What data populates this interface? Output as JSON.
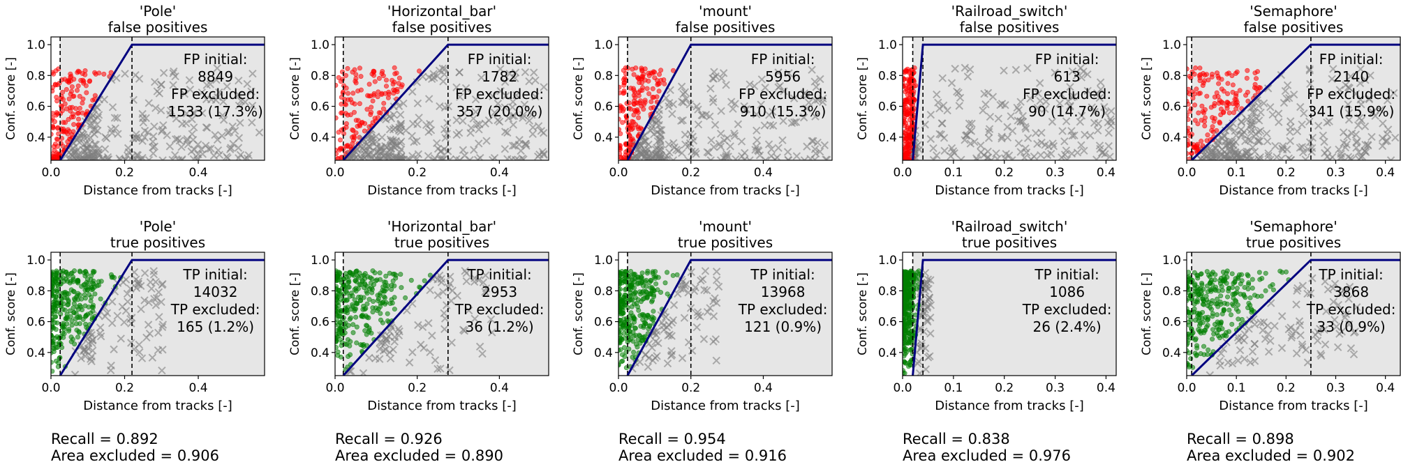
{
  "figure": {
    "x_axis_label": "Distance from tracks [-]",
    "y_axis_label": "Conf. score [-]",
    "colors": {
      "fp_kept": "#ff0000",
      "tp_kept": "#007f00",
      "excluded": "#7f7f7f",
      "shade": "#e6e6e6",
      "threshold_line": "#00007f"
    }
  },
  "chart_data": [
    {
      "type": "scatter",
      "class_name": "'Pole'",
      "xlim": [
        0,
        0.58
      ],
      "ylim": [
        0.25,
        1.05
      ],
      "xticks": [
        "0.0",
        "0.2",
        "0.4"
      ],
      "xtick_values": [
        0,
        0.2,
        0.4
      ],
      "yticks": [
        "0.4",
        "0.6",
        "0.8",
        "1.0"
      ],
      "ytick_values": [
        0.4,
        0.6,
        0.8,
        1.0
      ],
      "dashed_x": [
        0.025,
        0.22
      ],
      "threshold_curve": [
        [
          0.025,
          0.25
        ],
        [
          0.22,
          1.0
        ],
        [
          0.58,
          1.0
        ]
      ],
      "fp": {
        "title": "false positives",
        "lines": [
          "FP initial:",
          "8849",
          "FP excluded:",
          "1533 (17.3%)"
        ]
      },
      "tp": {
        "title": "true positives",
        "lines": [
          "TP initial:",
          "14032",
          "TP excluded:",
          "165 (1.2%)"
        ]
      },
      "recall": "Recall = 0.892",
      "area_excluded": "Area excluded = 0.906"
    },
    {
      "type": "scatter",
      "class_name": "'Horizontal_bar'",
      "xlim": [
        0,
        0.52
      ],
      "ylim": [
        0.25,
        1.05
      ],
      "xticks": [
        "0.0",
        "0.2",
        "0.4"
      ],
      "xtick_values": [
        0,
        0.2,
        0.4
      ],
      "yticks": [
        "0.4",
        "0.6",
        "0.8",
        "1.0"
      ],
      "ytick_values": [
        0.4,
        0.6,
        0.8,
        1.0
      ],
      "dashed_x": [
        0.02,
        0.275
      ],
      "threshold_curve": [
        [
          0.02,
          0.25
        ],
        [
          0.275,
          1.0
        ],
        [
          0.52,
          1.0
        ]
      ],
      "fp": {
        "title": "false positives",
        "lines": [
          "FP initial:",
          "1782",
          "FP excluded:",
          "357 (20.0%)"
        ]
      },
      "tp": {
        "title": "true positives",
        "lines": [
          "TP initial:",
          "2953",
          "TP excluded:",
          "36 (1.2%)"
        ]
      },
      "recall": "Recall = 0.926",
      "area_excluded": "Area excluded = 0.890"
    },
    {
      "type": "scatter",
      "class_name": "'mount'",
      "xlim": [
        0,
        0.59
      ],
      "ylim": [
        0.25,
        1.05
      ],
      "xticks": [
        "0.0",
        "0.2",
        "0.4"
      ],
      "xtick_values": [
        0,
        0.2,
        0.4
      ],
      "yticks": [
        "0.4",
        "0.6",
        "0.8",
        "1.0"
      ],
      "ytick_values": [
        0.4,
        0.6,
        0.8,
        1.0
      ],
      "dashed_x": [
        0.025,
        0.2
      ],
      "threshold_curve": [
        [
          0.025,
          0.25
        ],
        [
          0.2,
          1.0
        ],
        [
          0.59,
          1.0
        ]
      ],
      "fp": {
        "title": "false positives",
        "lines": [
          "FP initial:",
          "5956",
          "FP excluded:",
          "910 (15.3%)"
        ]
      },
      "tp": {
        "title": "true positives",
        "lines": [
          "TP initial:",
          "13968",
          "TP excluded:",
          "121 (0.9%)"
        ]
      },
      "recall": "Recall = 0.954",
      "area_excluded": "Area excluded = 0.916"
    },
    {
      "type": "scatter",
      "class_name": "'Railroad_switch'",
      "xlim": [
        0,
        0.42
      ],
      "ylim": [
        0.25,
        1.05
      ],
      "xticks": [
        "0.0",
        "0.1",
        "0.2",
        "0.3",
        "0.4"
      ],
      "xtick_values": [
        0,
        0.1,
        0.2,
        0.3,
        0.4
      ],
      "yticks": [
        "0.4",
        "0.6",
        "0.8",
        "1.0"
      ],
      "ytick_values": [
        0.4,
        0.6,
        0.8,
        1.0
      ],
      "dashed_x": [
        0.02,
        0.04
      ],
      "threshold_curve": [
        [
          0.02,
          0.25
        ],
        [
          0.04,
          1.0
        ],
        [
          0.42,
          1.0
        ]
      ],
      "fp": {
        "title": "false positives",
        "lines": [
          "FP initial:",
          "613",
          "FP excluded:",
          "90 (14.7%)"
        ]
      },
      "tp": {
        "title": "true positives",
        "lines": [
          "TP initial:",
          "1086",
          "TP excluded:",
          "26 (2.4%)"
        ]
      },
      "recall": "Recall = 0.838",
      "area_excluded": "Area excluded = 0.976"
    },
    {
      "type": "scatter",
      "class_name": "'Semaphore'",
      "xlim": [
        0,
        0.43
      ],
      "ylim": [
        0.25,
        1.05
      ],
      "xticks": [
        "0.0",
        "0.1",
        "0.2",
        "0.3",
        "0.4"
      ],
      "xtick_values": [
        0,
        0.1,
        0.2,
        0.3,
        0.4
      ],
      "yticks": [
        "0.4",
        "0.6",
        "0.8",
        "1.0"
      ],
      "ytick_values": [
        0.4,
        0.6,
        0.8,
        1.0
      ],
      "dashed_x": [
        0.01,
        0.25
      ],
      "threshold_curve": [
        [
          0.01,
          0.25
        ],
        [
          0.25,
          1.0
        ],
        [
          0.43,
          1.0
        ]
      ],
      "fp": {
        "title": "false positives",
        "lines": [
          "FP initial:",
          "2140",
          "FP excluded:",
          "341 (15.9%)"
        ]
      },
      "tp": {
        "title": "true positives",
        "lines": [
          "TP initial:",
          "3868",
          "TP excluded:",
          "33 (0.9%)"
        ]
      },
      "recall": "Recall = 0.898",
      "area_excluded": "Area excluded = 0.902"
    }
  ]
}
